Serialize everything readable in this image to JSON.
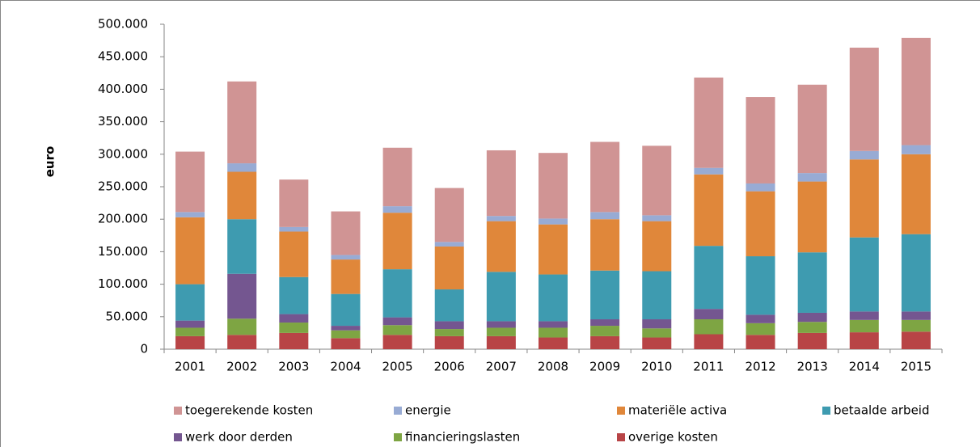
{
  "chart_data": {
    "type": "stacked_bar",
    "y_label": "euro",
    "categories": [
      "2001",
      "2002",
      "2003",
      "2004",
      "2005",
      "2006",
      "2007",
      "2008",
      "2009",
      "2010",
      "2011",
      "2012",
      "2013",
      "2014",
      "2015"
    ],
    "ylim": [
      0,
      500000
    ],
    "yticks": [
      0,
      {
        "value": 50000,
        "label": "50.000"
      },
      {
        "value": 100000,
        "label": "100.000"
      },
      {
        "value": 150000,
        "label": "150.000"
      },
      {
        "value": 200000,
        "label": "200.000"
      },
      {
        "value": 250000,
        "label": "250.000"
      },
      {
        "value": 300000,
        "label": "300.000"
      },
      {
        "value": 350000,
        "label": "350.000"
      },
      {
        "value": 400000,
        "label": "400.000"
      },
      {
        "value": 450000,
        "label": "450.000"
      },
      {
        "value": 500000,
        "label": "500.000"
      }
    ],
    "grid": false,
    "legend": "bottom",
    "series": [
      {
        "name": "toegerekende kosten",
        "color": "#d09494",
        "values": [
          93000,
          126000,
          73000,
          67000,
          90000,
          83000,
          101000,
          101000,
          108000,
          107000,
          139000,
          133000,
          136000,
          159000,
          165000
        ]
      },
      {
        "name": "energie",
        "color": "#98abd4",
        "values": [
          8000,
          13000,
          7000,
          7000,
          10000,
          7000,
          8000,
          9000,
          11000,
          9000,
          10000,
          12000,
          13000,
          13000,
          14000
        ]
      },
      {
        "name": "materiële activa",
        "color": "#e0873a",
        "values": [
          103000,
          73000,
          70000,
          53000,
          87000,
          66000,
          78000,
          77000,
          79000,
          77000,
          110000,
          100000,
          109000,
          120000,
          123000
        ]
      },
      {
        "name": "betaalde arbeid",
        "color": "#3e9bb0",
        "values": [
          56000,
          84000,
          57000,
          49000,
          74000,
          49000,
          76000,
          72000,
          75000,
          74000,
          97000,
          90000,
          93000,
          114000,
          119000
        ]
      },
      {
        "name": "werk door derden",
        "color": "#745690",
        "values": [
          11000,
          69000,
          13000,
          7000,
          12000,
          12000,
          10000,
          10000,
          10000,
          14000,
          16000,
          13000,
          14000,
          13000,
          13000
        ]
      },
      {
        "name": "financieringslasten",
        "color": "#7ea543",
        "values": [
          13000,
          25000,
          16000,
          12000,
          15000,
          11000,
          13000,
          15000,
          16000,
          14000,
          23000,
          18000,
          17000,
          19000,
          18000
        ]
      },
      {
        "name": "overige kosten",
        "color": "#b84446",
        "values": [
          20000,
          22000,
          25000,
          17000,
          22000,
          20000,
          20000,
          18000,
          20000,
          18000,
          23000,
          22000,
          25000,
          26000,
          27000
        ]
      }
    ]
  }
}
